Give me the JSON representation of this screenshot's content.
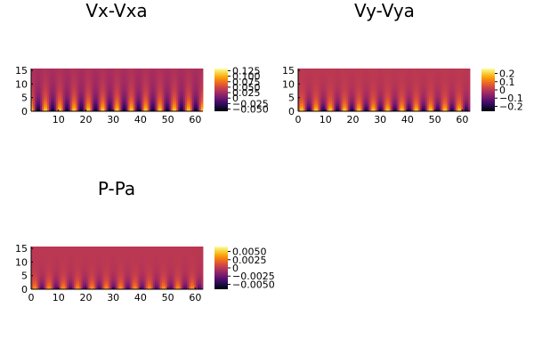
{
  "chart_data": [
    {
      "type": "heatmap",
      "title": "Vx-Vxa",
      "xlabel": "",
      "ylabel": "",
      "xlim": [
        0,
        62.8
      ],
      "ylim": [
        0,
        15.7
      ],
      "x_ticks": [
        "10",
        "20",
        "30",
        "40",
        "50",
        "60"
      ],
      "y_ticks": [
        "0",
        "5",
        "10",
        "15"
      ],
      "colorbar": {
        "range": [
          -0.06,
          0.135
        ],
        "ticks": [
          "0.125",
          "0.100",
          "0.075",
          "0.050",
          "0.025",
          "0",
          "−0.025",
          "−0.050"
        ],
        "tick_values": [
          0.125,
          0.1,
          0.075,
          0.05,
          0.025,
          0,
          -0.025,
          -0.05
        ]
      },
      "pattern": {
        "base_value": 0.03,
        "cells_along_x": 12,
        "cell_peak": 0.13,
        "cell_trough": -0.06,
        "decay_height": 4
      }
    },
    {
      "type": "heatmap",
      "title": "Vy-Vya",
      "xlabel": "",
      "ylabel": "",
      "xlim": [
        0,
        62.8
      ],
      "ylim": [
        0,
        15.7
      ],
      "x_ticks": [
        "0",
        "10",
        "20",
        "30",
        "40",
        "50",
        "60"
      ],
      "y_ticks": [
        "0",
        "5",
        "10",
        "15"
      ],
      "colorbar": {
        "range": [
          -0.26,
          0.26
        ],
        "ticks": [
          "0.2",
          "0.1",
          "0",
          "−0.1",
          "−0.2"
        ],
        "tick_values": [
          0.2,
          0.1,
          0,
          -0.1,
          -0.2
        ]
      },
      "pattern": {
        "base_value": 0,
        "cells_along_x": 12,
        "cell_peak": 0.25,
        "cell_trough": -0.25,
        "decay_height": 3
      }
    },
    {
      "type": "heatmap",
      "title": "P-Pa",
      "xlabel": "",
      "ylabel": "",
      "xlim": [
        0,
        62.8
      ],
      "ylim": [
        0,
        15.7
      ],
      "x_ticks": [
        "0",
        "10",
        "20",
        "30",
        "40",
        "50",
        "60"
      ],
      "y_ticks": [
        "0",
        "5",
        "10",
        "15"
      ],
      "colorbar": {
        "range": [
          -0.0065,
          0.0065
        ],
        "ticks": [
          "0.0050",
          "0.0025",
          "0",
          "−0.0025",
          "−0.0050"
        ],
        "tick_values": [
          0.005,
          0.0025,
          0,
          -0.0025,
          -0.005
        ]
      },
      "pattern": {
        "base_value": 0,
        "cells_along_x": 12,
        "cell_peak": 0.0045,
        "cell_trough": -0.0045,
        "decay_height": 2.5
      }
    }
  ],
  "colormap": {
    "name": "inferno",
    "stops": [
      "#000004",
      "#1b0c41",
      "#4a0c6b",
      "#781c6d",
      "#a52c60",
      "#cf4446",
      "#ed6925",
      "#fb9b06",
      "#f7d13d",
      "#fcffa4"
    ]
  }
}
